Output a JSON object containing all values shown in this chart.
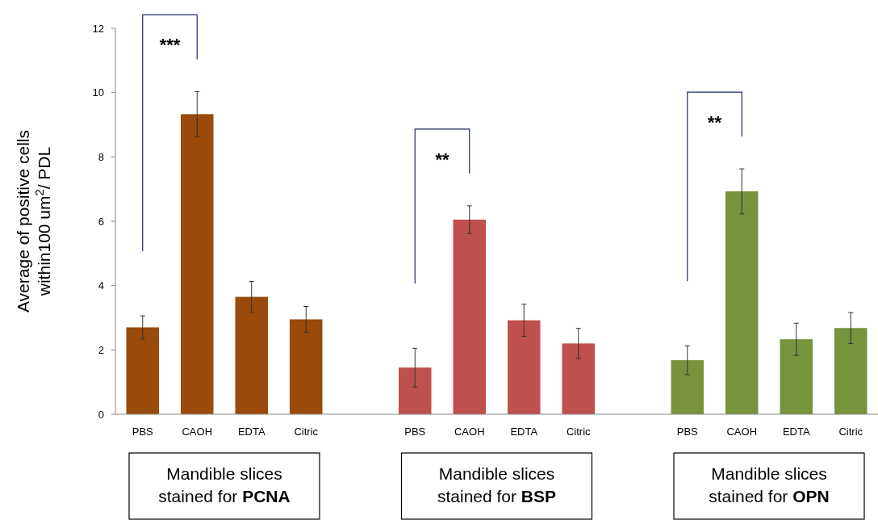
{
  "chart_data": {
    "type": "bar",
    "ylabel": "Average of positive cells within100 um$^{2}$/ PDL",
    "categories": [
      "PBS",
      "CAOH",
      "EDTA",
      "Citric",
      null,
      "PBS",
      "CAOH",
      "EDTA",
      "Citric",
      null,
      "PBS",
      "CAOH",
      "EDTA",
      "Citric"
    ],
    "values": [
      2.7,
      9.33,
      3.65,
      2.95,
      null,
      1.45,
      6.05,
      2.92,
      2.2,
      null,
      1.68,
      6.93,
      2.33,
      2.68
    ],
    "errors": [
      0.36,
      0.7,
      0.48,
      0.4,
      null,
      0.6,
      0.43,
      0.5,
      0.47,
      null,
      0.45,
      0.7,
      0.5,
      0.48
    ],
    "colors": [
      "#9a4a0a",
      "#9a4a0a",
      "#9a4a0a",
      "#9a4a0a",
      null,
      "#c0504d",
      "#c0504d",
      "#c0504d",
      "#c0504d",
      null,
      "#77933c",
      "#77933c",
      "#77933c",
      "#77933c"
    ],
    "ylim": [
      0,
      12
    ],
    "yticks": [
      0,
      2,
      4,
      6,
      8,
      10,
      12
    ],
    "grid": false,
    "annotations": [
      "***",
      "**",
      "**",
      "Mandible slices stained for PCNA",
      "Mandible slices stained for BSP",
      "Mandible slices stained for OPN"
    ]
  }
}
